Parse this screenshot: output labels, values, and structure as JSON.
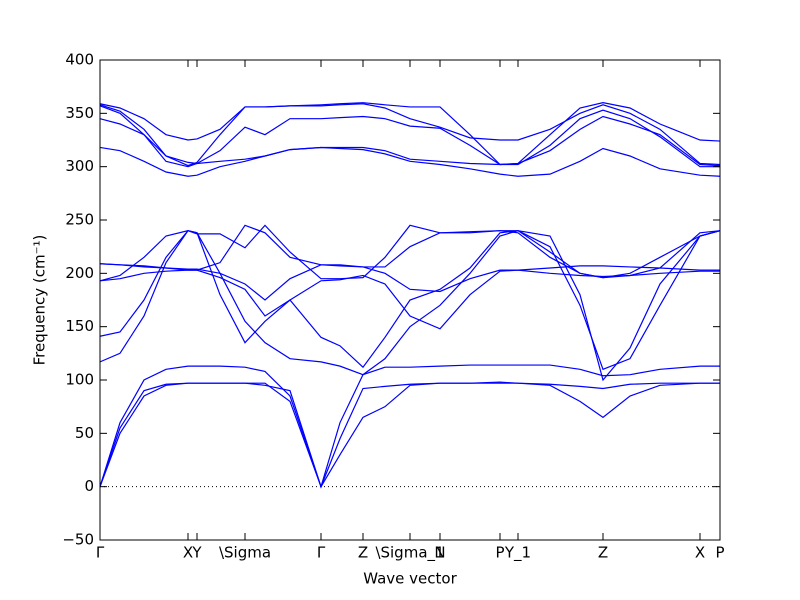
{
  "chart_data": {
    "type": "line",
    "xlabel": "Wave vector",
    "ylabel": "Frequency (cm⁻¹)",
    "xlim": [
      0,
      620
    ],
    "ylim": [
      -50,
      400
    ],
    "yticks": [
      {
        "value": -50,
        "label": "−50"
      },
      0,
      50,
      100,
      150,
      200,
      250,
      300,
      350,
      400
    ],
    "xticks": [
      {
        "value": 0,
        "label": "Γ"
      },
      {
        "value": 88,
        "label": "X"
      },
      {
        "value": 97,
        "label": "Y"
      },
      {
        "value": 145,
        "label": "\\Sigma"
      },
      {
        "value": 221,
        "label": "Γ"
      },
      {
        "value": 263,
        "label": "Z"
      },
      {
        "value": 310,
        "label": "\\Sigma_1"
      },
      {
        "value": 340,
        "label": "N"
      },
      {
        "value": 400,
        "label": "P"
      },
      {
        "value": 418,
        "label": "Y_1"
      },
      {
        "value": 503,
        "label": "Z"
      },
      {
        "value": 600,
        "label": "X"
      },
      {
        "value": 620,
        "label": "P"
      }
    ],
    "reference_line": 0,
    "x": [
      0,
      20,
      44,
      66,
      88,
      97,
      120,
      145,
      165,
      190,
      221,
      240,
      263,
      285,
      310,
      340,
      370,
      400,
      418,
      450,
      480,
      503,
      530,
      560,
      600,
      620
    ],
    "series": [
      {
        "color": "#0000ff",
        "values": [
          0,
          50,
          85,
          95,
          97,
          97,
          97,
          97,
          97,
          80,
          0,
          30,
          65,
          75,
          95,
          97,
          97,
          97,
          97,
          95,
          80,
          65,
          85,
          95,
          97,
          97
        ]
      },
      {
        "color": "#0000ff",
        "values": [
          0,
          55,
          90,
          96,
          97,
          97,
          97,
          97,
          95,
          90,
          0,
          45,
          92,
          94,
          96,
          97,
          97,
          98,
          97,
          96,
          94,
          92,
          96,
          97,
          97,
          97
        ]
      },
      {
        "color": "#0000ff",
        "values": [
          0,
          60,
          100,
          110,
          113,
          113,
          113,
          112,
          108,
          85,
          0,
          60,
          105,
          112,
          112,
          113,
          114,
          114,
          114,
          114,
          110,
          104,
          105,
          110,
          113,
          113
        ]
      },
      {
        "color": "#0000ff",
        "values": [
          117,
          125,
          160,
          210,
          240,
          238,
          200,
          155,
          135,
          120,
          117,
          113,
          105,
          120,
          150,
          170,
          200,
          235,
          240,
          225,
          170,
          110,
          120,
          170,
          235,
          240
        ]
      },
      {
        "color": "#0000ff",
        "values": [
          141,
          145,
          175,
          215,
          240,
          238,
          180,
          135,
          155,
          175,
          140,
          132,
          112,
          140,
          175,
          185,
          205,
          238,
          240,
          235,
          180,
          100,
          130,
          190,
          235,
          240
        ]
      },
      {
        "color": "#0000ff",
        "values": [
          193,
          198,
          215,
          235,
          240,
          237,
          237,
          224,
          245,
          220,
          195,
          195,
          196,
          215,
          245,
          238,
          238,
          240,
          240,
          220,
          200,
          196,
          200,
          215,
          235,
          240
        ]
      },
      {
        "color": "#0000ff",
        "values": [
          193,
          195,
          200,
          202,
          203,
          203,
          196,
          185,
          160,
          175,
          193,
          194,
          198,
          190,
          160,
          148,
          180,
          202,
          203,
          200,
          198,
          197,
          198,
          200,
          202,
          202
        ]
      },
      {
        "color": "#0000ff",
        "values": [
          209,
          208,
          206,
          205,
          204,
          204,
          200,
          190,
          175,
          195,
          208,
          208,
          206,
          200,
          185,
          183,
          195,
          203,
          203,
          205,
          207,
          207,
          206,
          205,
          203,
          203
        ]
      },
      {
        "color": "#0000ff",
        "values": [
          209,
          208,
          207,
          205,
          203,
          203,
          210,
          245,
          238,
          215,
          208,
          207,
          206,
          206,
          225,
          238,
          239,
          240,
          238,
          215,
          200,
          196,
          198,
          205,
          238,
          240
        ]
      },
      {
        "color": "#0000ff",
        "values": [
          318,
          315,
          305,
          295,
          291,
          292,
          300,
          305,
          310,
          316,
          318,
          317,
          316,
          312,
          305,
          302,
          298,
          293,
          291,
          293,
          305,
          317,
          310,
          298,
          292,
          291
        ]
      },
      {
        "color": "#0000ff",
        "values": [
          345,
          340,
          330,
          310,
          304,
          303,
          305,
          307,
          310,
          316,
          318,
          318,
          318,
          315,
          307,
          305,
          303,
          302,
          303,
          315,
          335,
          347,
          340,
          330,
          302,
          301
        ]
      },
      {
        "color": "#0000ff",
        "values": [
          357,
          350,
          330,
          305,
          300,
          303,
          315,
          337,
          330,
          345,
          345,
          346,
          347,
          345,
          338,
          336,
          320,
          302,
          302,
          320,
          345,
          353,
          345,
          328,
          300,
          300
        ]
      },
      {
        "color": "#0000ff",
        "values": [
          358,
          352,
          335,
          310,
          301,
          304,
          330,
          356,
          356,
          357,
          357,
          358,
          359,
          355,
          345,
          337,
          327,
          325,
          325,
          335,
          350,
          358,
          350,
          335,
          303,
          302
        ]
      },
      {
        "color": "#0000ff",
        "values": [
          359,
          355,
          345,
          330,
          325,
          326,
          335,
          356,
          356,
          357,
          358,
          359,
          360,
          358,
          356,
          356,
          330,
          302,
          303,
          330,
          355,
          360,
          355,
          340,
          325,
          324
        ]
      }
    ]
  }
}
